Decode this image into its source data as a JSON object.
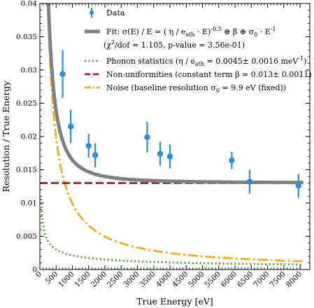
{
  "chart_data": {
    "type": "scatter",
    "xlabel": "True Energy [eV]",
    "ylabel": "Resolution / True Energy",
    "xlim": [
      0,
      8300
    ],
    "ylim": [
      0,
      0.04
    ],
    "x_ticks": [
      0,
      500,
      1000,
      1500,
      2000,
      2500,
      3000,
      3500,
      4000,
      4500,
      5000,
      5500,
      6000,
      6500,
      7000,
      7500,
      8000
    ],
    "y_ticks": [
      0,
      0.005,
      0.01,
      0.015,
      0.02,
      0.025,
      0.03,
      0.035,
      0.04
    ],
    "x_tick_labels": [
      "0",
      "500",
      "1000",
      "1500",
      "2000",
      "2500",
      "3000",
      "3500",
      "4000",
      "4500",
      "5000",
      "5500",
      "6000",
      "6500",
      "7000",
      "7500",
      "8000"
    ],
    "y_tick_labels": [
      "0",
      "0.005",
      "0.01",
      "0.015",
      "0.02",
      "0.025",
      "0.03",
      "0.035",
      "0.04"
    ],
    "grid": false,
    "legend_position": "top-right",
    "colors": {
      "data": "#2b8ce6",
      "fit": "#808080",
      "phonon": "#4aa02c",
      "nonuniform": "#a01c2c",
      "noise": "#f0b023"
    },
    "data_points": [
      {
        "x": 700,
        "y": 0.0294,
        "err": 0.0036
      },
      {
        "x": 950,
        "y": 0.0215,
        "err": 0.0025
      },
      {
        "x": 1500,
        "y": 0.0186,
        "err": 0.0018
      },
      {
        "x": 1700,
        "y": 0.0172,
        "err": 0.0018
      },
      {
        "x": 3300,
        "y": 0.0199,
        "err": 0.0023
      },
      {
        "x": 3700,
        "y": 0.0174,
        "err": 0.0018
      },
      {
        "x": 4000,
        "y": 0.017,
        "err": 0.0018
      },
      {
        "x": 5900,
        "y": 0.0164,
        "err": 0.0013
      },
      {
        "x": 6450,
        "y": 0.0132,
        "err": 0.0018
      },
      {
        "x": 7950,
        "y": 0.0126,
        "err": 0.0018
      }
    ],
    "model": {
      "eta_over_eath": 0.0045,
      "beta": 0.013,
      "sigma0": 9.9
    },
    "legend": {
      "data": "Data",
      "fit": "Fit: σ(E) / E = ( η / e",
      "fit_sub": "ath",
      "fit_mid": " · E)",
      "fit_sup": "-0.5",
      "fit_end": " ⊕ β ⊕ σ",
      "fit_sub2": "0",
      "fit_tail": " · E",
      "fit_sup2": "-1",
      "chi_open": "(χ",
      "chi_sup": "2",
      "chi_rest": "/dof = 1.105, p-value = 3.56e-01)",
      "phonon": "Phonon statistics (η / e",
      "phonon_sub": "ath",
      "phonon_rest": " = 0.0045± 0.0016 meV",
      "phonon_sup": "-1",
      "phonon_close": ")",
      "nonuniform": "Non-uniformities (constant term β = 0.013± 0.0011)",
      "noise": "Noise (baseline resolution σ",
      "noise_sub": "0",
      "noise_rest": " = 9.9 eV (fixed))"
    }
  }
}
